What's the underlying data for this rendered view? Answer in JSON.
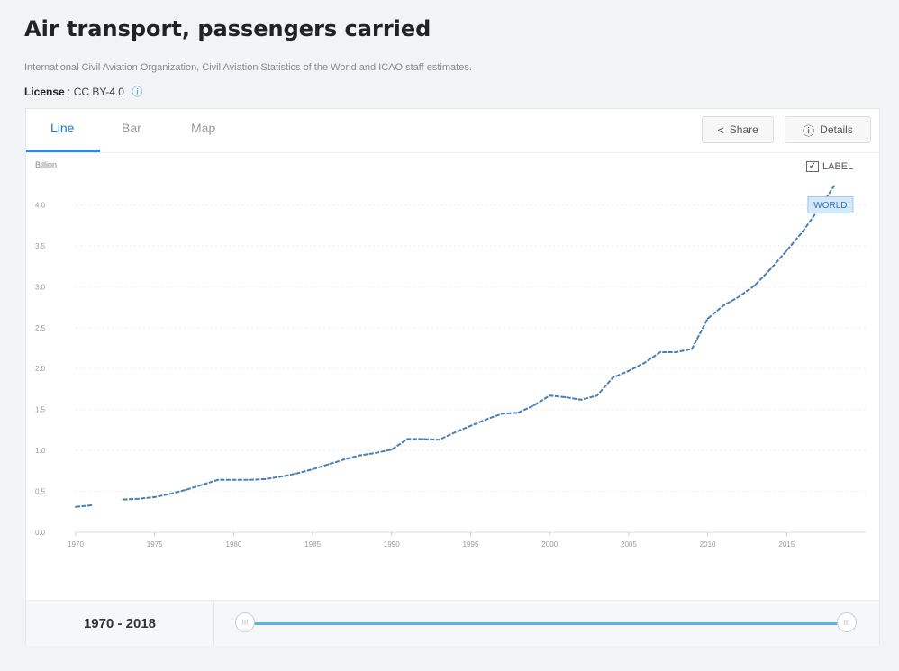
{
  "header": {
    "title": "Air transport, passengers carried",
    "source": "International Civil Aviation Organization, Civil Aviation Statistics of the World and ICAO staff estimates.",
    "license_label": "License",
    "license_value": ": CC BY-4.0",
    "license_info_icon": "info-icon"
  },
  "tabs": [
    {
      "label": "Line",
      "active": true
    },
    {
      "label": "Bar",
      "active": false
    },
    {
      "label": "Map",
      "active": false
    }
  ],
  "actions": {
    "share_label": "Share",
    "share_icon": "share-icon",
    "details_label": "Details",
    "details_icon": "info-icon"
  },
  "label_toggle": {
    "text": "LABEL",
    "checked": true
  },
  "series_badge": "WORLD",
  "range": {
    "text": "1970 - 2018",
    "handle_left": "III",
    "handle_right": "III"
  },
  "colors": {
    "line": "#4a7fb5",
    "accent": "#2d8ae0",
    "slider": "#5ab0e8",
    "badge_bg": "#d6e9f8"
  },
  "chart_data": {
    "type": "line",
    "ylabel": "Billion",
    "ylim": [
      0,
      4.5
    ],
    "xlim": [
      1970,
      2020
    ],
    "y_ticks": [
      "0.0",
      "0.5",
      "1.0",
      "1.5",
      "2.0",
      "2.5",
      "3.0",
      "3.5",
      "4.0"
    ],
    "x_ticks": [
      "1970",
      "1975",
      "1980",
      "1985",
      "1990",
      "1995",
      "2000",
      "2005",
      "2010",
      "2015"
    ],
    "grid": true,
    "series": [
      {
        "name": "WORLD",
        "x": [
          1970,
          1971,
          1973,
          1974,
          1975,
          1976,
          1977,
          1978,
          1979,
          1980,
          1981,
          1982,
          1983,
          1984,
          1985,
          1986,
          1987,
          1988,
          1989,
          1990,
          1991,
          1992,
          1993,
          1994,
          1995,
          1996,
          1997,
          1998,
          1999,
          2000,
          2001,
          2002,
          2003,
          2004,
          2005,
          2006,
          2007,
          2008,
          2009,
          2010,
          2011,
          2012,
          2013,
          2014,
          2015,
          2016,
          2017,
          2018
        ],
        "y": [
          0.31,
          0.33,
          0.4,
          0.41,
          0.43,
          0.47,
          0.52,
          0.58,
          0.64,
          0.64,
          0.64,
          0.65,
          0.68,
          0.72,
          0.77,
          0.83,
          0.89,
          0.94,
          0.97,
          1.01,
          1.14,
          1.14,
          1.13,
          1.22,
          1.3,
          1.38,
          1.45,
          1.46,
          1.55,
          1.67,
          1.65,
          1.62,
          1.67,
          1.89,
          1.97,
          2.07,
          2.2,
          2.2,
          2.24,
          2.61,
          2.77,
          2.88,
          3.02,
          3.22,
          3.44,
          3.67,
          3.94,
          4.23
        ]
      }
    ]
  }
}
